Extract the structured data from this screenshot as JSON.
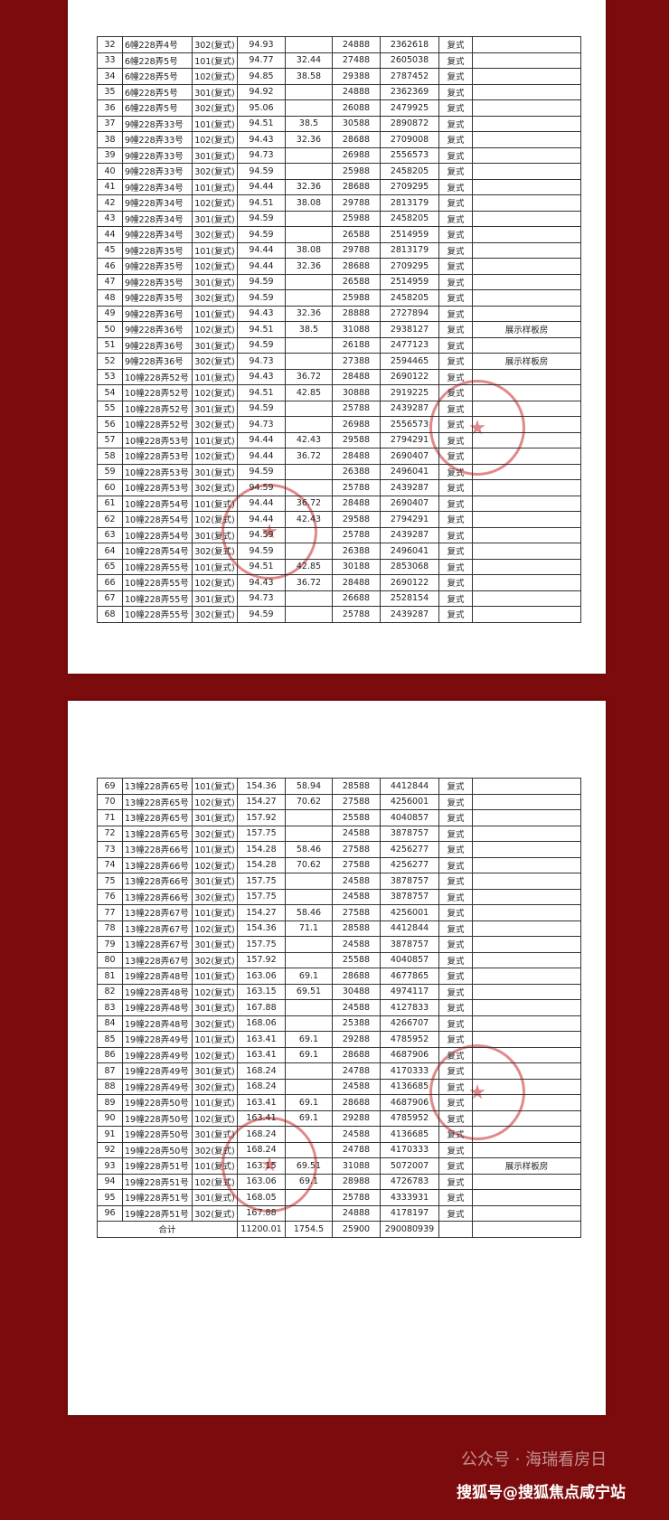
{
  "pages": [
    {
      "rows": [
        {
          "no": "32",
          "addr": "6幢228弄4号",
          "unit": "302(复式)",
          "area": "94.93",
          "price": "24888",
          "total": "2362618",
          "type": "复式"
        },
        {
          "no": "33",
          "addr": "6幢228弄5号",
          "unit": "101(复式)",
          "area": "94.77",
          "extra": "32.44",
          "price": "27488",
          "total": "2605038",
          "type": "复式"
        },
        {
          "no": "34",
          "addr": "6幢228弄5号",
          "unit": "102(复式)",
          "area": "94.85",
          "extra": "38.58",
          "price": "29388",
          "total": "2787452",
          "type": "复式"
        },
        {
          "no": "35",
          "addr": "6幢228弄5号",
          "unit": "301(复式)",
          "area": "94.92",
          "price": "24888",
          "total": "2362369",
          "type": "复式"
        },
        {
          "no": "36",
          "addr": "6幢228弄5号",
          "unit": "302(复式)",
          "area": "95.06",
          "price": "26088",
          "total": "2479925",
          "type": "复式"
        },
        {
          "no": "37",
          "addr": "9幢228弄33号",
          "unit": "101(复式)",
          "area": "94.51",
          "extra": "38.5",
          "price": "30588",
          "total": "2890872",
          "type": "复式"
        },
        {
          "no": "38",
          "addr": "9幢228弄33号",
          "unit": "102(复式)",
          "area": "94.43",
          "extra": "32.36",
          "price": "28688",
          "total": "2709008",
          "type": "复式"
        },
        {
          "no": "39",
          "addr": "9幢228弄33号",
          "unit": "301(复式)",
          "area": "94.73",
          "price": "26988",
          "total": "2556573",
          "type": "复式"
        },
        {
          "no": "40",
          "addr": "9幢228弄33号",
          "unit": "302(复式)",
          "area": "94.59",
          "price": "25988",
          "total": "2458205",
          "type": "复式"
        },
        {
          "no": "41",
          "addr": "9幢228弄34号",
          "unit": "101(复式)",
          "area": "94.44",
          "extra": "32.36",
          "price": "28688",
          "total": "2709295",
          "type": "复式"
        },
        {
          "no": "42",
          "addr": "9幢228弄34号",
          "unit": "102(复式)",
          "area": "94.51",
          "extra": "38.08",
          "price": "29788",
          "total": "2813179",
          "type": "复式"
        },
        {
          "no": "43",
          "addr": "9幢228弄34号",
          "unit": "301(复式)",
          "area": "94.59",
          "price": "25988",
          "total": "2458205",
          "type": "复式"
        },
        {
          "no": "44",
          "addr": "9幢228弄34号",
          "unit": "302(复式)",
          "area": "94.59",
          "price": "26588",
          "total": "2514959",
          "type": "复式"
        },
        {
          "no": "45",
          "addr": "9幢228弄35号",
          "unit": "101(复式)",
          "area": "94.44",
          "extra": "38.08",
          "price": "29788",
          "total": "2813179",
          "type": "复式"
        },
        {
          "no": "46",
          "addr": "9幢228弄35号",
          "unit": "102(复式)",
          "area": "94.44",
          "extra": "32.36",
          "price": "28688",
          "total": "2709295",
          "type": "复式"
        },
        {
          "no": "47",
          "addr": "9幢228弄35号",
          "unit": "301(复式)",
          "area": "94.59",
          "price": "26588",
          "total": "2514959",
          "type": "复式"
        },
        {
          "no": "48",
          "addr": "9幢228弄35号",
          "unit": "302(复式)",
          "area": "94.59",
          "price": "25988",
          "total": "2458205",
          "type": "复式"
        },
        {
          "no": "49",
          "addr": "9幢228弄36号",
          "unit": "101(复式)",
          "area": "94.43",
          "extra": "32.36",
          "price": "28888",
          "total": "2727894",
          "type": "复式"
        },
        {
          "no": "50",
          "addr": "9幢228弄36号",
          "unit": "102(复式)",
          "area": "94.51",
          "extra": "38.5",
          "price": "31088",
          "total": "2938127",
          "type": "复式",
          "note": "展示样板房"
        },
        {
          "no": "51",
          "addr": "9幢228弄36号",
          "unit": "301(复式)",
          "area": "94.59",
          "price": "26188",
          "total": "2477123",
          "type": "复式"
        },
        {
          "no": "52",
          "addr": "9幢228弄36号",
          "unit": "302(复式)",
          "area": "94.73",
          "price": "27388",
          "total": "2594465",
          "type": "复式",
          "note": "展示样板房"
        },
        {
          "no": "53",
          "addr": "10幢228弄52号",
          "unit": "101(复式)",
          "area": "94.43",
          "extra": "36.72",
          "price": "28488",
          "total": "2690122",
          "type": "复式"
        },
        {
          "no": "54",
          "addr": "10幢228弄52号",
          "unit": "102(复式)",
          "area": "94.51",
          "extra": "42.85",
          "price": "30888",
          "total": "2919225",
          "type": "复式"
        },
        {
          "no": "55",
          "addr": "10幢228弄52号",
          "unit": "301(复式)",
          "area": "94.59",
          "price": "25788",
          "total": "2439287",
          "type": "复式"
        },
        {
          "no": "56",
          "addr": "10幢228弄52号",
          "unit": "302(复式)",
          "area": "94.73",
          "price": "26988",
          "total": "2556573",
          "type": "复式"
        },
        {
          "no": "57",
          "addr": "10幢228弄53号",
          "unit": "101(复式)",
          "area": "94.44",
          "extra": "42.43",
          "price": "29588",
          "total": "2794291",
          "type": "复式"
        },
        {
          "no": "58",
          "addr": "10幢228弄53号",
          "unit": "102(复式)",
          "area": "94.44",
          "extra": "36.72",
          "price": "28488",
          "total": "2690407",
          "type": "复式"
        },
        {
          "no": "59",
          "addr": "10幢228弄53号",
          "unit": "301(复式)",
          "area": "94.59",
          "price": "26388",
          "total": "2496041",
          "type": "复式"
        },
        {
          "no": "60",
          "addr": "10幢228弄53号",
          "unit": "302(复式)",
          "area": "94.59",
          "price": "25788",
          "total": "2439287",
          "type": "复式"
        },
        {
          "no": "61",
          "addr": "10幢228弄54号",
          "unit": "101(复式)",
          "area": "94.44",
          "extra": "36.72",
          "price": "28488",
          "total": "2690407",
          "type": "复式"
        },
        {
          "no": "62",
          "addr": "10幢228弄54号",
          "unit": "102(复式)",
          "area": "94.44",
          "extra": "42.43",
          "price": "29588",
          "total": "2794291",
          "type": "复式"
        },
        {
          "no": "63",
          "addr": "10幢228弄54号",
          "unit": "301(复式)",
          "area": "94.59",
          "price": "25788",
          "total": "2439287",
          "type": "复式"
        },
        {
          "no": "64",
          "addr": "10幢228弄54号",
          "unit": "302(复式)",
          "area": "94.59",
          "price": "26388",
          "total": "2496041",
          "type": "复式"
        },
        {
          "no": "65",
          "addr": "10幢228弄55号",
          "unit": "101(复式)",
          "area": "94.51",
          "extra": "42.85",
          "price": "30188",
          "total": "2853068",
          "type": "复式"
        },
        {
          "no": "66",
          "addr": "10幢228弄55号",
          "unit": "102(复式)",
          "area": "94.43",
          "extra": "36.72",
          "price": "28488",
          "total": "2690122",
          "type": "复式"
        },
        {
          "no": "67",
          "addr": "10幢228弄55号",
          "unit": "301(复式)",
          "area": "94.73",
          "price": "26688",
          "total": "2528154",
          "type": "复式"
        },
        {
          "no": "68",
          "addr": "10幢228弄55号",
          "unit": "302(复式)",
          "area": "94.59",
          "price": "25788",
          "total": "2439287",
          "type": "复式"
        }
      ]
    },
    {
      "rows": [
        {
          "no": "69",
          "addr": "13幢228弄65号",
          "unit": "101(复式)",
          "area": "154.36",
          "extra": "58.94",
          "price": "28588",
          "total": "4412844",
          "type": "复式"
        },
        {
          "no": "70",
          "addr": "13幢228弄65号",
          "unit": "102(复式)",
          "area": "154.27",
          "extra": "70.62",
          "price": "27588",
          "total": "4256001",
          "type": "复式"
        },
        {
          "no": "71",
          "addr": "13幢228弄65号",
          "unit": "301(复式)",
          "area": "157.92",
          "price": "25588",
          "total": "4040857",
          "type": "复式"
        },
        {
          "no": "72",
          "addr": "13幢228弄65号",
          "unit": "302(复式)",
          "area": "157.75",
          "price": "24588",
          "total": "3878757",
          "type": "复式"
        },
        {
          "no": "73",
          "addr": "13幢228弄66号",
          "unit": "101(复式)",
          "area": "154.28",
          "extra": "58.46",
          "price": "27588",
          "total": "4256277",
          "type": "复式"
        },
        {
          "no": "74",
          "addr": "13幢228弄66号",
          "unit": "102(复式)",
          "area": "154.28",
          "extra": "70.62",
          "price": "27588",
          "total": "4256277",
          "type": "复式"
        },
        {
          "no": "75",
          "addr": "13幢228弄66号",
          "unit": "301(复式)",
          "area": "157.75",
          "price": "24588",
          "total": "3878757",
          "type": "复式"
        },
        {
          "no": "76",
          "addr": "13幢228弄66号",
          "unit": "302(复式)",
          "area": "157.75",
          "price": "24588",
          "total": "3878757",
          "type": "复式"
        },
        {
          "no": "77",
          "addr": "13幢228弄67号",
          "unit": "101(复式)",
          "area": "154.27",
          "extra": "58.46",
          "price": "27588",
          "total": "4256001",
          "type": "复式"
        },
        {
          "no": "78",
          "addr": "13幢228弄67号",
          "unit": "102(复式)",
          "area": "154.36",
          "extra": "71.1",
          "price": "28588",
          "total": "4412844",
          "type": "复式"
        },
        {
          "no": "79",
          "addr": "13幢228弄67号",
          "unit": "301(复式)",
          "area": "157.75",
          "price": "24588",
          "total": "3878757",
          "type": "复式"
        },
        {
          "no": "80",
          "addr": "13幢228弄67号",
          "unit": "302(复式)",
          "area": "157.92",
          "price": "25588",
          "total": "4040857",
          "type": "复式"
        },
        {
          "no": "81",
          "addr": "19幢228弄48号",
          "unit": "101(复式)",
          "area": "163.06",
          "extra": "69.1",
          "price": "28688",
          "total": "4677865",
          "type": "复式"
        },
        {
          "no": "82",
          "addr": "19幢228弄48号",
          "unit": "102(复式)",
          "area": "163.15",
          "extra": "69.51",
          "price": "30488",
          "total": "4974117",
          "type": "复式"
        },
        {
          "no": "83",
          "addr": "19幢228弄48号",
          "unit": "301(复式)",
          "area": "167.88",
          "price": "24588",
          "total": "4127833",
          "type": "复式"
        },
        {
          "no": "84",
          "addr": "19幢228弄48号",
          "unit": "302(复式)",
          "area": "168.06",
          "price": "25388",
          "total": "4266707",
          "type": "复式"
        },
        {
          "no": "85",
          "addr": "19幢228弄49号",
          "unit": "101(复式)",
          "area": "163.41",
          "extra": "69.1",
          "price": "29288",
          "total": "4785952",
          "type": "复式"
        },
        {
          "no": "86",
          "addr": "19幢228弄49号",
          "unit": "102(复式)",
          "area": "163.41",
          "extra": "69.1",
          "price": "28688",
          "total": "4687906",
          "type": "复式"
        },
        {
          "no": "87",
          "addr": "19幢228弄49号",
          "unit": "301(复式)",
          "area": "168.24",
          "price": "24788",
          "total": "4170333",
          "type": "复式"
        },
        {
          "no": "88",
          "addr": "19幢228弄49号",
          "unit": "302(复式)",
          "area": "168.24",
          "price": "24588",
          "total": "4136685",
          "type": "复式"
        },
        {
          "no": "89",
          "addr": "19幢228弄50号",
          "unit": "101(复式)",
          "area": "163.41",
          "extra": "69.1",
          "price": "28688",
          "total": "4687906",
          "type": "复式"
        },
        {
          "no": "90",
          "addr": "19幢228弄50号",
          "unit": "102(复式)",
          "area": "163.41",
          "extra": "69.1",
          "price": "29288",
          "total": "4785952",
          "type": "复式"
        },
        {
          "no": "91",
          "addr": "19幢228弄50号",
          "unit": "301(复式)",
          "area": "168.24",
          "price": "24588",
          "total": "4136685",
          "type": "复式"
        },
        {
          "no": "92",
          "addr": "19幢228弄50号",
          "unit": "302(复式)",
          "area": "168.24",
          "price": "24788",
          "total": "4170333",
          "type": "复式"
        },
        {
          "no": "93",
          "addr": "19幢228弄51号",
          "unit": "101(复式)",
          "area": "163.15",
          "extra": "69.51",
          "price": "31088",
          "total": "5072007",
          "type": "复式",
          "note": "展示样板房"
        },
        {
          "no": "94",
          "addr": "19幢228弄51号",
          "unit": "102(复式)",
          "area": "163.06",
          "extra": "69.1",
          "price": "28988",
          "total": "4726783",
          "type": "复式"
        },
        {
          "no": "95",
          "addr": "19幢228弄51号",
          "unit": "301(复式)",
          "area": "168.05",
          "price": "25788",
          "total": "4333931",
          "type": "复式"
        },
        {
          "no": "96",
          "addr": "19幢228弄51号",
          "unit": "302(复式)",
          "area": "167.88",
          "price": "24888",
          "total": "4178197",
          "type": "复式"
        }
      ],
      "total_row": {
        "label": "合计",
        "area": "11200.01",
        "extra": "1754.5",
        "price": "25900",
        "total": "290080939"
      }
    }
  ],
  "footer": {
    "watermark": "公众号 · 海瑞看房日",
    "source": "搜狐号@搜狐焦点咸宁站"
  }
}
